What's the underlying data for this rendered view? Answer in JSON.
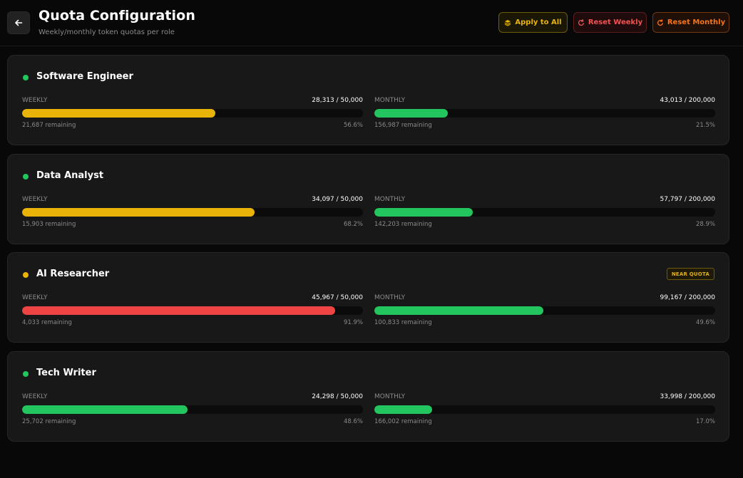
{
  "header": {
    "title": "Quota Configuration",
    "subtitle": "Weekly/monthly token quotas per role",
    "apply_all_label": "Apply to All",
    "reset_weekly_label": "Reset Weekly",
    "reset_monthly_label": "Reset Monthly"
  },
  "colors": {
    "green": "#22c55e",
    "yellow": "#eab308",
    "red": "#ef4444",
    "orange": "#f97316"
  },
  "roles": [
    {
      "name": "Software Engineer",
      "status_color": "#22c55e",
      "badge": "",
      "weekly": {
        "label": "WEEKLY",
        "usage": "28,313 / 50,000",
        "remaining": "21,687 remaining",
        "percent": "56.6%",
        "fraction": 0.566,
        "bar_color": "#eab308"
      },
      "monthly": {
        "label": "MONTHLY",
        "usage": "43,013 / 200,000",
        "remaining": "156,987 remaining",
        "percent": "21.5%",
        "fraction": 0.215,
        "bar_color": "#22c55e"
      }
    },
    {
      "name": "Data Analyst",
      "status_color": "#22c55e",
      "badge": "",
      "weekly": {
        "label": "WEEKLY",
        "usage": "34,097 / 50,000",
        "remaining": "15,903 remaining",
        "percent": "68.2%",
        "fraction": 0.682,
        "bar_color": "#eab308"
      },
      "monthly": {
        "label": "MONTHLY",
        "usage": "57,797 / 200,000",
        "remaining": "142,203 remaining",
        "percent": "28.9%",
        "fraction": 0.289,
        "bar_color": "#22c55e"
      }
    },
    {
      "name": "AI Researcher",
      "status_color": "#eab308",
      "badge": "NEAR QUOTA",
      "weekly": {
        "label": "WEEKLY",
        "usage": "45,967 / 50,000",
        "remaining": "4,033 remaining",
        "percent": "91.9%",
        "fraction": 0.919,
        "bar_color": "#ef4444"
      },
      "monthly": {
        "label": "MONTHLY",
        "usage": "99,167 / 200,000",
        "remaining": "100,833 remaining",
        "percent": "49.6%",
        "fraction": 0.496,
        "bar_color": "#22c55e"
      }
    },
    {
      "name": "Tech Writer",
      "status_color": "#22c55e",
      "badge": "",
      "weekly": {
        "label": "WEEKLY",
        "usage": "24,298 / 50,000",
        "remaining": "25,702 remaining",
        "percent": "48.6%",
        "fraction": 0.486,
        "bar_color": "#22c55e"
      },
      "monthly": {
        "label": "MONTHLY",
        "usage": "33,998 / 200,000",
        "remaining": "166,002 remaining",
        "percent": "17.0%",
        "fraction": 0.17,
        "bar_color": "#22c55e"
      }
    }
  ]
}
